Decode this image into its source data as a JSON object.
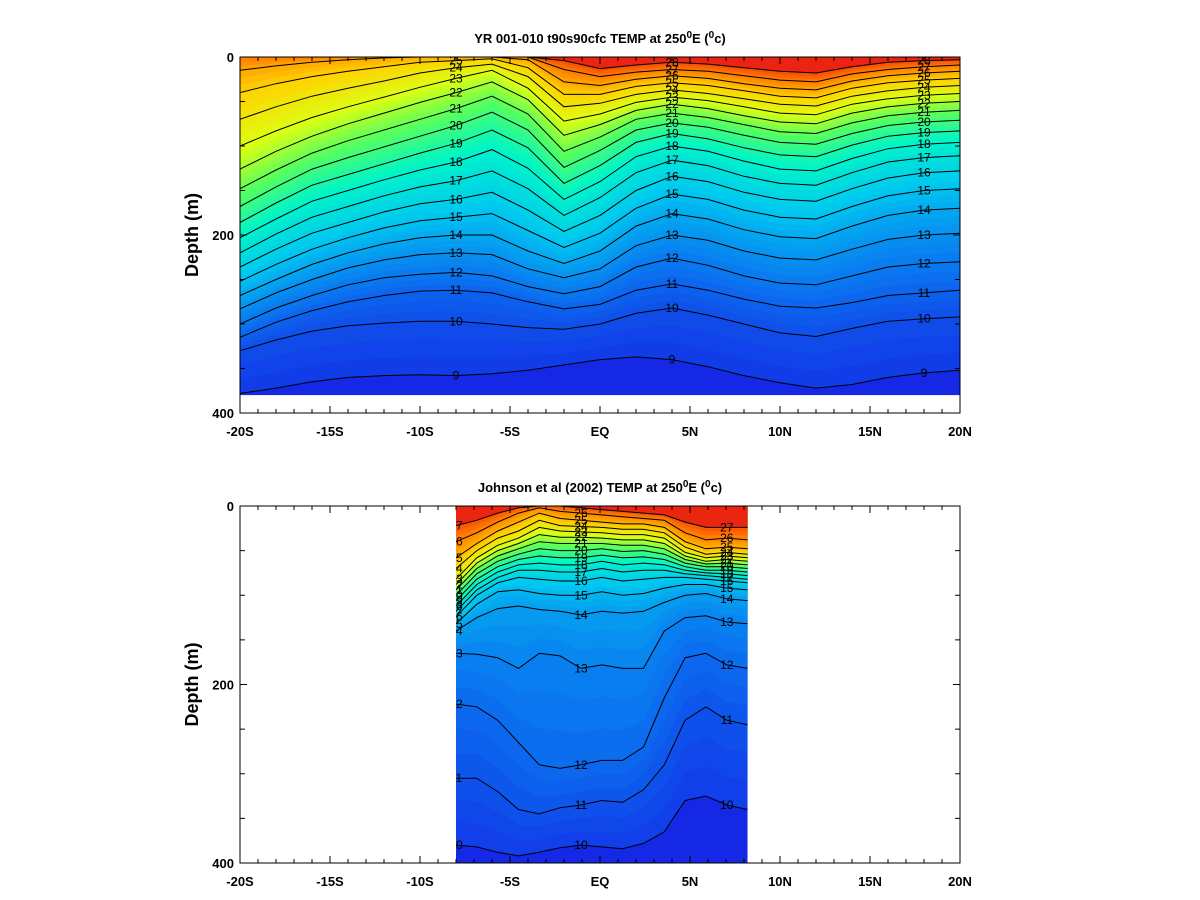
{
  "chart_data": [
    {
      "type": "heatmap",
      "title": "YR 001-010 t90s90cfc TEMP at 250°E (°c)",
      "title_parts": {
        "pre": "YR 001-010 t90s90cfc TEMP at 250",
        "sup1": "0",
        "mid": "E (",
        "sup2": "0",
        "post": "c)"
      },
      "ylabel": "Depth (m)",
      "xlabel": "",
      "xlim": [
        -20,
        20
      ],
      "ylim": [
        400,
        0
      ],
      "x_ticks": [
        -20,
        -15,
        -10,
        -5,
        0,
        5,
        10,
        15,
        20
      ],
      "x_tick_labels": [
        "-20S",
        "-15S",
        "-10S",
        "-5S",
        "EQ",
        "5N",
        "10N",
        "15N",
        "20N"
      ],
      "y_ticks": [
        0,
        200,
        400
      ],
      "y_tick_labels": [
        "0",
        "200",
        "400"
      ],
      "data_xrange": [
        -20,
        20
      ],
      "data_bottom": 380,
      "colormap": "rainbow (blue cold to red warm)",
      "grid": false,
      "isotherm_labels": [
        "26",
        "27",
        "28",
        "25",
        "24",
        "23",
        "22",
        "21",
        "20",
        "19",
        "18",
        "17",
        "16",
        "15",
        "14",
        "13",
        "12",
        "11",
        "10",
        "9"
      ],
      "isotherms": [
        {
          "value": 9,
          "depths": [
            378,
            372,
            365,
            360,
            358,
            357,
            358,
            356,
            352,
            346,
            340,
            337,
            340,
            348,
            358,
            366,
            372,
            368,
            360,
            355,
            352
          ]
        },
        {
          "value": 10,
          "depths": [
            330,
            318,
            308,
            302,
            299,
            297,
            297,
            300,
            304,
            306,
            300,
            288,
            282,
            290,
            300,
            310,
            314,
            305,
            297,
            294,
            292
          ]
        },
        {
          "value": 11,
          "depths": [
            315,
            298,
            285,
            275,
            268,
            263,
            262,
            265,
            275,
            283,
            278,
            262,
            255,
            262,
            272,
            280,
            282,
            276,
            268,
            265,
            262
          ]
        },
        {
          "value": 12,
          "depths": [
            300,
            282,
            268,
            256,
            248,
            244,
            242,
            246,
            258,
            266,
            258,
            236,
            226,
            234,
            246,
            254,
            256,
            246,
            236,
            232,
            230
          ]
        },
        {
          "value": 13,
          "depths": [
            283,
            265,
            250,
            237,
            228,
            222,
            220,
            222,
            238,
            248,
            238,
            212,
            200,
            206,
            218,
            226,
            228,
            216,
            205,
            200,
            198
          ]
        },
        {
          "value": 14,
          "depths": [
            268,
            250,
            233,
            220,
            210,
            203,
            200,
            200,
            218,
            232,
            218,
            190,
            176,
            182,
            194,
            202,
            204,
            190,
            178,
            172,
            170
          ]
        },
        {
          "value": 15,
          "depths": [
            252,
            233,
            216,
            203,
            192,
            184,
            180,
            176,
            195,
            214,
            198,
            170,
            154,
            160,
            172,
            180,
            182,
            168,
            156,
            150,
            148
          ]
        },
        {
          "value": 16,
          "depths": [
            236,
            216,
            198,
            186,
            174,
            165,
            160,
            152,
            172,
            196,
            178,
            150,
            134,
            140,
            152,
            160,
            162,
            148,
            136,
            130,
            128
          ]
        },
        {
          "value": 17,
          "depths": [
            220,
            199,
            180,
            168,
            156,
            146,
            139,
            128,
            148,
            178,
            158,
            130,
            116,
            122,
            134,
            142,
            144,
            130,
            118,
            113,
            111
          ]
        },
        {
          "value": 18,
          "depths": [
            203,
            182,
            162,
            150,
            138,
            127,
            118,
            104,
            125,
            160,
            140,
            112,
            100,
            106,
            117,
            126,
            128,
            114,
            103,
            98,
            96
          ]
        },
        {
          "value": 19,
          "depths": [
            186,
            164,
            144,
            132,
            120,
            108,
            97,
            82,
            102,
            142,
            122,
            96,
            86,
            92,
            102,
            110,
            112,
            99,
            89,
            85,
            83
          ]
        },
        {
          "value": 20,
          "depths": [
            168,
            146,
            126,
            113,
            101,
            89,
            77,
            62,
            82,
            124,
            105,
            82,
            74,
            79,
            88,
            96,
            98,
            86,
            77,
            73,
            71
          ]
        },
        {
          "value": 21,
          "depths": [
            148,
            127,
            108,
            94,
            82,
            70,
            58,
            44,
            64,
            106,
            90,
            70,
            63,
            68,
            76,
            84,
            86,
            74,
            66,
            62,
            60
          ]
        },
        {
          "value": 22,
          "depths": [
            126,
            106,
            89,
            75,
            63,
            51,
            40,
            28,
            48,
            88,
            76,
            60,
            53,
            58,
            66,
            73,
            75,
            63,
            56,
            52,
            50
          ]
        },
        {
          "value": 23,
          "depths": [
            100,
            83,
            68,
            56,
            45,
            34,
            24,
            15,
            35,
            72,
            64,
            51,
            45,
            49,
            56,
            63,
            65,
            53,
            47,
            43,
            41
          ]
        },
        {
          "value": 24,
          "depths": [
            70,
            56,
            44,
            35,
            27,
            18,
            12,
            8,
            22,
            56,
            52,
            42,
            37,
            41,
            47,
            53,
            55,
            44,
            38,
            34,
            32
          ]
        },
        {
          "value": 25,
          "depths": [
            40,
            30,
            22,
            16,
            11,
            6,
            4,
            2,
            12,
            42,
            42,
            33,
            29,
            32,
            38,
            44,
            46,
            35,
            29,
            26,
            24
          ]
        },
        {
          "value": 26,
          "depths": [
            15,
            10,
            6,
            3,
            1,
            0,
            0,
            0,
            3,
            28,
            32,
            25,
            21,
            24,
            30,
            35,
            37,
            27,
            21,
            18,
            16
          ]
        },
        {
          "value": 27,
          "depths": [
            0,
            0,
            0,
            0,
            0,
            0,
            0,
            0,
            0,
            14,
            22,
            17,
            14,
            16,
            21,
            26,
            28,
            19,
            14,
            11,
            9
          ]
        },
        {
          "value": 28,
          "depths": [
            0,
            0,
            0,
            0,
            0,
            0,
            0,
            0,
            0,
            4,
            13,
            9,
            6,
            8,
            12,
            16,
            18,
            11,
            6,
            4,
            3
          ]
        }
      ]
    },
    {
      "type": "heatmap",
      "title": "Johnson et al (2002) TEMP at 250°E (°c)",
      "title_parts": {
        "pre": "Johnson et al (2002) TEMP at 250",
        "sup1": "0",
        "mid": "E (",
        "sup2": "0",
        "post": "c)"
      },
      "ylabel": "Depth (m)",
      "xlabel": "",
      "xlim": [
        -20,
        20
      ],
      "ylim": [
        400,
        0
      ],
      "x_ticks": [
        -20,
        -15,
        -10,
        -5,
        0,
        5,
        10,
        15,
        20
      ],
      "x_tick_labels": [
        "-20S",
        "-15S",
        "-10S",
        "-5S",
        "EQ",
        "5N",
        "10N",
        "15N",
        "20N"
      ],
      "y_ticks": [
        0,
        200,
        400
      ],
      "y_tick_labels": [
        "0",
        "200",
        "400"
      ],
      "data_xrange": [
        -8,
        8.2
      ],
      "data_bottom": 400,
      "colormap": "rainbow (blue cold to red warm)",
      "grid": false,
      "isotherm_labels": [
        "25",
        "24",
        "23",
        "22",
        "21",
        "20",
        "19",
        "18",
        "17",
        "16",
        "15",
        "14",
        "13",
        "12",
        "11",
        "10",
        "26",
        "27"
      ],
      "isotherms": [
        {
          "value": 10,
          "depths": [
            380,
            382,
            388,
            392,
            388,
            383,
            380,
            382,
            384,
            378,
            365,
            330,
            325,
            335,
            340
          ]
        },
        {
          "value": 11,
          "depths": [
            305,
            305,
            320,
            340,
            345,
            338,
            335,
            330,
            332,
            318,
            290,
            240,
            225,
            240,
            245
          ]
        },
        {
          "value": 12,
          "depths": [
            222,
            225,
            240,
            265,
            290,
            294,
            290,
            285,
            285,
            270,
            215,
            170,
            165,
            178,
            182
          ]
        },
        {
          "value": 13,
          "depths": [
            165,
            166,
            170,
            182,
            165,
            168,
            182,
            178,
            182,
            182,
            140,
            125,
            123,
            130,
            132
          ]
        },
        {
          "value": 14,
          "depths": [
            140,
            125,
            115,
            112,
            116,
            118,
            122,
            118,
            120,
            118,
            108,
            100,
            98,
            104,
            106
          ]
        },
        {
          "value": 15,
          "depths": [
            132,
            110,
            96,
            94,
            98,
            100,
            100,
            96,
            100,
            98,
            92,
            88,
            88,
            92,
            94
          ]
        },
        {
          "value": 16,
          "depths": [
            124,
            100,
            86,
            80,
            82,
            84,
            84,
            80,
            84,
            82,
            80,
            80,
            82,
            84,
            86
          ]
        },
        {
          "value": 17,
          "depths": [
            118,
            94,
            80,
            72,
            72,
            74,
            74,
            70,
            74,
            72,
            72,
            76,
            78,
            80,
            82
          ]
        },
        {
          "value": 18,
          "depths": [
            112,
            88,
            74,
            66,
            64,
            66,
            66,
            62,
            66,
            64,
            66,
            72,
            75,
            76,
            78
          ]
        },
        {
          "value": 19,
          "depths": [
            106,
            82,
            68,
            60,
            56,
            58,
            58,
            55,
            58,
            57,
            60,
            68,
            72,
            72,
            74
          ]
        },
        {
          "value": 20,
          "depths": [
            100,
            76,
            62,
            54,
            48,
            50,
            50,
            48,
            51,
            50,
            54,
            64,
            68,
            68,
            70
          ]
        },
        {
          "value": 21,
          "depths": [
            94,
            70,
            56,
            48,
            40,
            42,
            42,
            42,
            44,
            44,
            48,
            60,
            65,
            64,
            66
          ]
        },
        {
          "value": 22,
          "depths": [
            88,
            64,
            50,
            42,
            32,
            35,
            35,
            36,
            38,
            38,
            42,
            56,
            62,
            60,
            62
          ]
        },
        {
          "value": 23,
          "depths": [
            82,
            58,
            44,
            36,
            24,
            28,
            29,
            30,
            32,
            32,
            36,
            52,
            58,
            56,
            58
          ]
        },
        {
          "value": 24,
          "depths": [
            70,
            50,
            36,
            28,
            16,
            22,
            23,
            24,
            26,
            26,
            30,
            46,
            54,
            52,
            54
          ]
        },
        {
          "value": 25,
          "depths": [
            58,
            42,
            28,
            18,
            8,
            14,
            16,
            18,
            20,
            20,
            24,
            40,
            48,
            46,
            48
          ]
        },
        {
          "value": 26,
          "depths": [
            40,
            30,
            18,
            8,
            2,
            6,
            8,
            10,
            12,
            14,
            16,
            30,
            38,
            36,
            38
          ]
        },
        {
          "value": 27,
          "depths": [
            22,
            16,
            8,
            2,
            0,
            0,
            2,
            4,
            6,
            8,
            10,
            18,
            24,
            24,
            24
          ]
        }
      ]
    }
  ]
}
